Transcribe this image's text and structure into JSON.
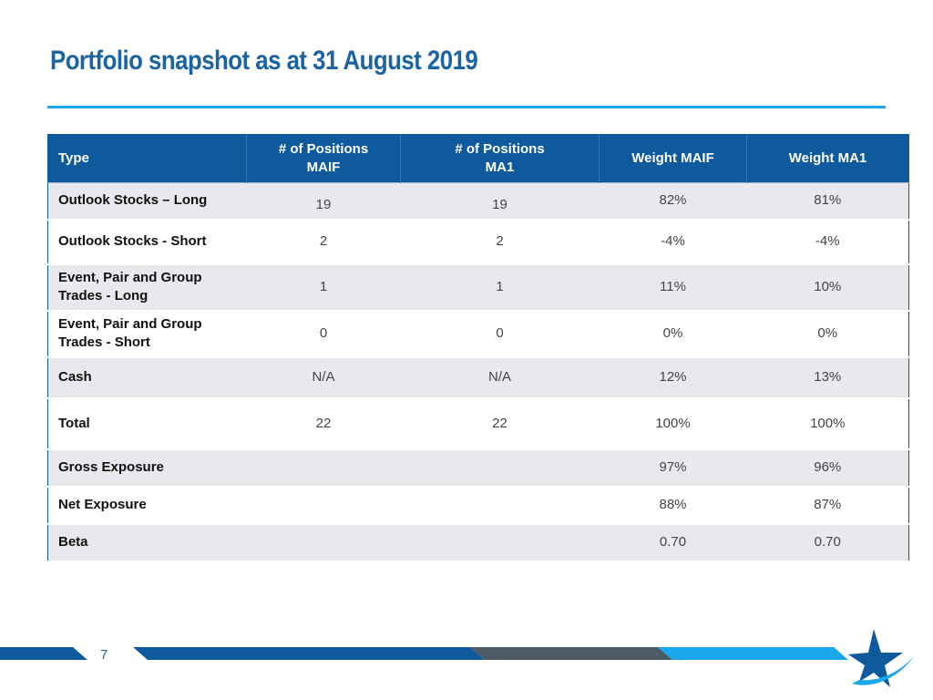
{
  "slide": {
    "title": "Portfolio snapshot as at 31 August 2019",
    "page_number": "7"
  },
  "table": {
    "headers": [
      "Type",
      "# of Positions\nMAIF",
      "# of Positions\nMA1",
      "Weight MAIF",
      "Weight MA1"
    ],
    "rows": [
      {
        "label": "Outlook Stocks – Long",
        "pos_maif": "19",
        "pos_ma1": "19",
        "w_maif": "82%",
        "w_ma1": "81%"
      },
      {
        "label": "Outlook Stocks - Short",
        "pos_maif": "2",
        "pos_ma1": "2",
        "w_maif": "-4%",
        "w_ma1": "-4%"
      },
      {
        "label": "Event, Pair and Group Trades - Long",
        "pos_maif": "1",
        "pos_ma1": "1",
        "w_maif": "11%",
        "w_ma1": "10%"
      },
      {
        "label": "Event, Pair and Group Trades - Short",
        "pos_maif": "0",
        "pos_ma1": "0",
        "w_maif": "0%",
        "w_ma1": "0%"
      },
      {
        "label": "Cash",
        "pos_maif": "N/A",
        "pos_ma1": "N/A",
        "w_maif": "12%",
        "w_ma1": "13%"
      },
      {
        "label": "Total",
        "pos_maif": "22",
        "pos_ma1": "22",
        "w_maif": "100%",
        "w_ma1": "100%"
      },
      {
        "label": "Gross Exposure",
        "pos_maif": "",
        "pos_ma1": "",
        "w_maif": "97%",
        "w_ma1": "96%"
      },
      {
        "label": "Net Exposure",
        "pos_maif": "",
        "pos_ma1": "",
        "w_maif": "88%",
        "w_ma1": "87%"
      },
      {
        "label": "Beta",
        "pos_maif": "",
        "pos_ma1": "",
        "w_maif": "0.70",
        "w_ma1": "0.70"
      }
    ]
  },
  "colors": {
    "title": "#1a64a6",
    "accent_rule": "#1aa7ec",
    "header_bg": "#0f5a9c",
    "row_shade": "#e8e9ed",
    "footer_dark": "#0f5a9c",
    "footer_grey": "#4d5a63",
    "footer_light": "#1aa7ec"
  },
  "logo": {
    "icon": "star-swoosh-logo-icon"
  }
}
